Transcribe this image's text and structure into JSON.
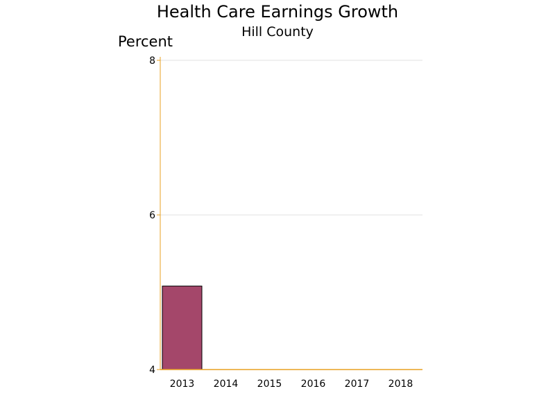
{
  "chart_data": {
    "type": "bar",
    "title": "Health Care Earnings Growth",
    "subtitle": "Hill County",
    "ylabel": "Percent",
    "xlabel": "",
    "categories": [
      "2013",
      "2014",
      "2015",
      "2016",
      "2017",
      "2018"
    ],
    "values": [
      5.08,
      null,
      null,
      null,
      null,
      null
    ],
    "ylim": [
      4,
      8
    ],
    "yticks": [
      4,
      6,
      8
    ],
    "grid": true,
    "legend": "none",
    "colors": {
      "bar": "#a4476a",
      "bar_outline": "#000000",
      "axis": "#e8a020",
      "gridline": "#e2e2e2",
      "baseline": "#c0481c"
    }
  }
}
